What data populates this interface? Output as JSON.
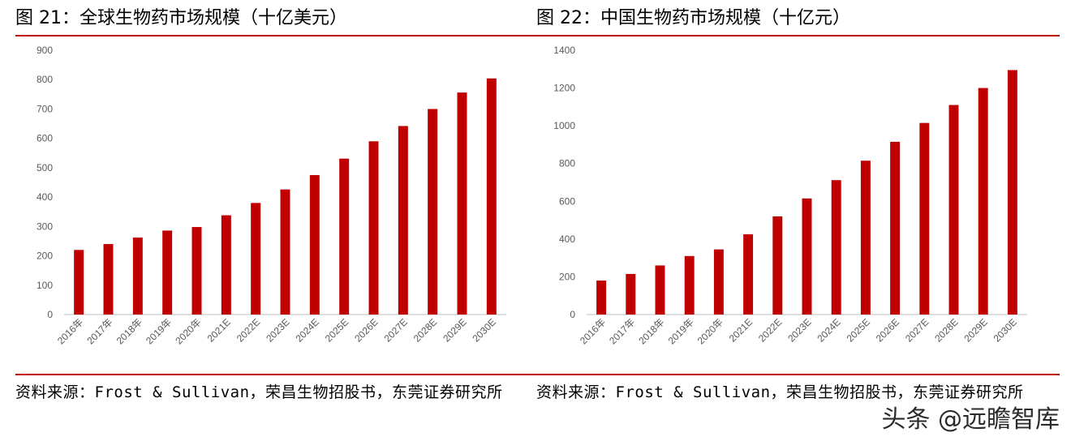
{
  "panels": [
    {
      "title": "图 21：全球生物药市场规模（十亿美元）",
      "source": "资料来源：Frost & Sullivan，荣昌生物招股书，东莞证券研究所"
    },
    {
      "title": "图 22：中国生物药市场规模（十亿元）",
      "source": "资料来源：Frost & Sullivan，荣昌生物招股书，东莞证券研究所"
    }
  ],
  "watermark": "头条 @远瞻智库",
  "colors": {
    "bar": "#c00000",
    "rule": "#c00000",
    "axis_text": "#595959",
    "axis_line": "#bfbfbf"
  },
  "chart_data": [
    {
      "type": "bar",
      "title": "图 21：全球生物药市场规模（十亿美元）",
      "categories": [
        "2016年",
        "2017年",
        "2018年",
        "2019年",
        "2020年",
        "2021E",
        "2022E",
        "2023E",
        "2024E",
        "2025E",
        "2026E",
        "2027E",
        "2028E",
        "2029E",
        "2030E"
      ],
      "values": [
        220,
        240,
        262,
        286,
        298,
        338,
        380,
        426,
        475,
        531,
        590,
        642,
        700,
        756,
        804
      ],
      "ylim": [
        0,
        900
      ],
      "yticks": [
        0,
        100,
        200,
        300,
        400,
        500,
        600,
        700,
        800,
        900
      ],
      "xlabel": "",
      "ylabel": "",
      "grid": false
    },
    {
      "type": "bar",
      "title": "图 22：中国生物药市场规模（十亿元）",
      "categories": [
        "2016年",
        "2017年",
        "2018年",
        "2019年",
        "2020年",
        "2021E",
        "2022E",
        "2023E",
        "2024E",
        "2025E",
        "2026E",
        "2027E",
        "2028E",
        "2029E",
        "2030E"
      ],
      "values": [
        180,
        215,
        260,
        310,
        345,
        425,
        520,
        615,
        712,
        815,
        915,
        1015,
        1110,
        1200,
        1295
      ],
      "ylim": [
        0,
        1400
      ],
      "yticks": [
        0,
        200,
        400,
        600,
        800,
        1000,
        1200,
        1400
      ],
      "xlabel": "",
      "ylabel": "",
      "grid": false
    }
  ]
}
